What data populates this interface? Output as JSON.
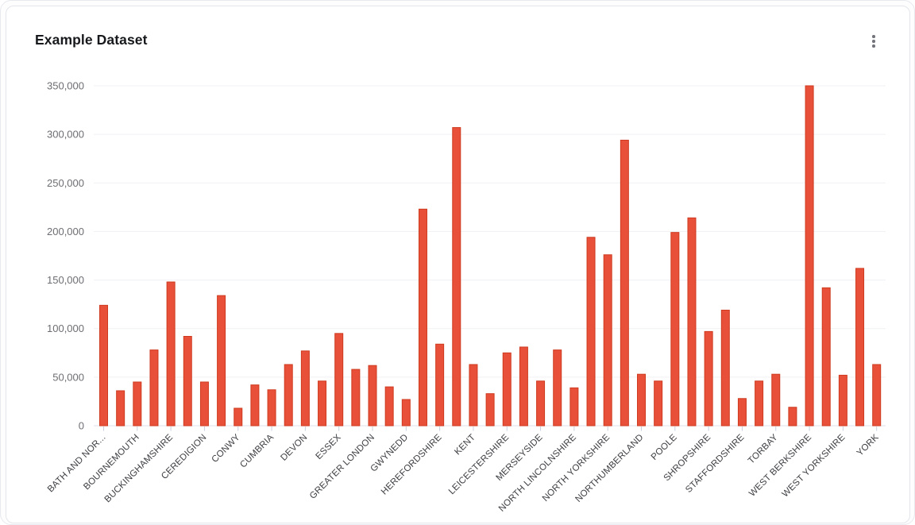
{
  "card": {
    "title": "Example Dataset",
    "menu_icon": "kebab-menu-icon"
  },
  "chart_data": {
    "type": "bar",
    "title": "Example Dataset",
    "ylabel": "",
    "xlabel": "",
    "ylim": [
      0,
      350000
    ],
    "y_tick_interval": 50000,
    "y_tick_labels": [
      "0",
      "50,000",
      "100,000",
      "150,000",
      "200,000",
      "250,000",
      "300,000",
      "350,000"
    ],
    "grid": true,
    "legend": false,
    "x_labels_rotation_deg": -45,
    "x_tick_every": 2,
    "bar_color": "#e8503a",
    "bar_border_color": "#ce3b1f",
    "axis_line_color": "#dfe2ec",
    "tick_color": "#c9cdde",
    "bars": [
      {
        "label": "BATH AND NOR...",
        "value": 124000
      },
      {
        "label": null,
        "value": 36000
      },
      {
        "label": "BOURNEMOUTH",
        "value": 45000
      },
      {
        "label": null,
        "value": 78000
      },
      {
        "label": "BUCKINGHAMSHIRE",
        "value": 148000
      },
      {
        "label": null,
        "value": 92000
      },
      {
        "label": "CEREDIGION",
        "value": 45000
      },
      {
        "label": null,
        "value": 134000
      },
      {
        "label": "CONWY",
        "value": 18000
      },
      {
        "label": null,
        "value": 42000
      },
      {
        "label": "CUMBRIA",
        "value": 37000
      },
      {
        "label": null,
        "value": 63000
      },
      {
        "label": "DEVON",
        "value": 77000
      },
      {
        "label": null,
        "value": 46000
      },
      {
        "label": "ESSEX",
        "value": 95000
      },
      {
        "label": null,
        "value": 58000
      },
      {
        "label": "GREATER LONDON",
        "value": 62000
      },
      {
        "label": null,
        "value": 40000
      },
      {
        "label": "GWYNEDD",
        "value": 27000
      },
      {
        "label": null,
        "value": 223000
      },
      {
        "label": "HEREFORDSHIRE",
        "value": 84000
      },
      {
        "label": null,
        "value": 307000
      },
      {
        "label": "KENT",
        "value": 63000
      },
      {
        "label": null,
        "value": 33000
      },
      {
        "label": "LEICESTERSHIRE",
        "value": 75000
      },
      {
        "label": null,
        "value": 81000
      },
      {
        "label": "MERSEYSIDE",
        "value": 46000
      },
      {
        "label": null,
        "value": 78000
      },
      {
        "label": "NORTH LINCOLNSHIRE",
        "value": 39000
      },
      {
        "label": null,
        "value": 194000
      },
      {
        "label": "NORTH YORKSHIRE",
        "value": 176000
      },
      {
        "label": null,
        "value": 294000
      },
      {
        "label": "NORTHUMBERLAND",
        "value": 53000
      },
      {
        "label": null,
        "value": 46000
      },
      {
        "label": "POOLE",
        "value": 199000
      },
      {
        "label": null,
        "value": 214000
      },
      {
        "label": "SHROPSHIRE",
        "value": 97000
      },
      {
        "label": null,
        "value": 119000
      },
      {
        "label": "STAFFORDSHIRE",
        "value": 28000
      },
      {
        "label": null,
        "value": 46000
      },
      {
        "label": "TORBAY",
        "value": 53000
      },
      {
        "label": null,
        "value": 19000
      },
      {
        "label": "WEST BERKSHIRE",
        "value": 350000
      },
      {
        "label": null,
        "value": 142000
      },
      {
        "label": "WEST YORKSHIRE",
        "value": 52000
      },
      {
        "label": null,
        "value": 162000
      },
      {
        "label": "YORK",
        "value": 63000
      }
    ]
  }
}
